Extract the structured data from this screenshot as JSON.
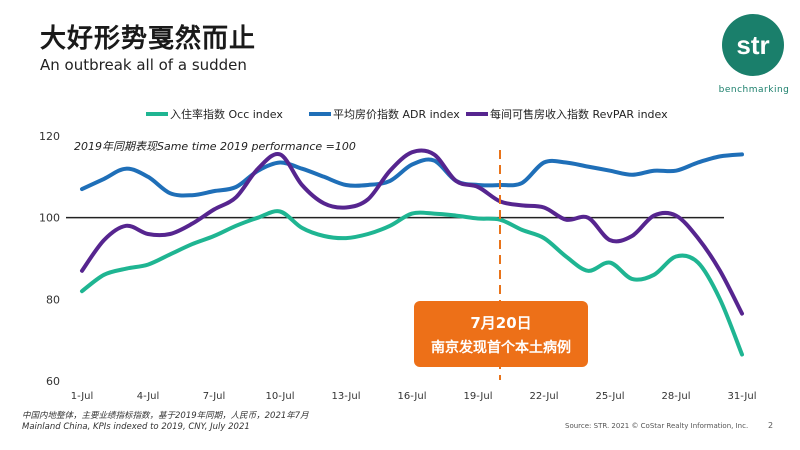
{
  "header": {
    "title": "大好形势戛然而止",
    "subtitle": "An outbreak all of a sudden",
    "logo_text": "str",
    "logo_sub": "benchmarking"
  },
  "note": "2019年同期表现Same time 2019 performance =100",
  "footnotes": {
    "line1": "中国内地整体，主要业绩指标指数，基于2019年同期，人民币，2021年7月",
    "line2": "Mainland China, KPIs indexed to 2019, CNY, July 2021",
    "source": "Source: STR. 2021 © CoStar Realty Information, Inc.",
    "page": "2"
  },
  "callout": {
    "line1": "7月20日",
    "line2": "南京发现首个本土病例"
  },
  "chart_data": {
    "type": "line",
    "x": [
      1,
      2,
      3,
      4,
      5,
      6,
      7,
      8,
      9,
      10,
      11,
      12,
      13,
      14,
      15,
      16,
      17,
      18,
      19,
      20,
      21,
      22,
      23,
      24,
      25,
      26,
      27,
      28,
      29,
      30,
      31
    ],
    "tick_labels": [
      "1-Jul",
      "4-Jul",
      "7-Jul",
      "10-Jul",
      "13-Jul",
      "16-Jul",
      "19-Jul",
      "22-Jul",
      "25-Jul",
      "28-Jul",
      "31-Jul"
    ],
    "tick_positions": [
      1,
      4,
      7,
      10,
      13,
      16,
      19,
      22,
      25,
      28,
      31
    ],
    "ylim": [
      60,
      120
    ],
    "yticks": [
      60,
      80,
      100,
      120
    ],
    "reference_line": 100,
    "event_x": 20,
    "legend_position": "top",
    "series": [
      {
        "name": "入住率指数 Occ index",
        "color": "#1fb592",
        "values": [
          82,
          86,
          87.5,
          88.5,
          91,
          93.5,
          95.5,
          98,
          100,
          101.5,
          97.5,
          95.5,
          95,
          96,
          98,
          101,
          101,
          100.5,
          99.8,
          99.5,
          97,
          95,
          90.5,
          87,
          89,
          85,
          86,
          90.5,
          89,
          80,
          66.5
        ]
      },
      {
        "name": "平均房价指数 ADR index",
        "color": "#1f6fb8",
        "values": [
          107,
          109.5,
          112,
          110,
          106,
          105.5,
          106.5,
          107.5,
          111.5,
          113.5,
          112,
          110,
          108,
          108,
          109,
          113,
          114,
          109,
          108,
          108,
          108.5,
          113.5,
          113.5,
          112.5,
          111.5,
          110.5,
          111.5,
          111.5,
          113.5,
          115,
          115.5
        ]
      },
      {
        "name": "每间可售房收入指数 RevPAR index",
        "color": "#56258f",
        "values": [
          87,
          94.5,
          98,
          96,
          96,
          98.5,
          102,
          105,
          112,
          115.5,
          108,
          103.5,
          102.5,
          104.5,
          111.5,
          116,
          115.5,
          109,
          107.5,
          104,
          103,
          102.5,
          99.5,
          100,
          94.5,
          95.5,
          100.5,
          100.5,
          95,
          87,
          76.5
        ]
      }
    ]
  }
}
